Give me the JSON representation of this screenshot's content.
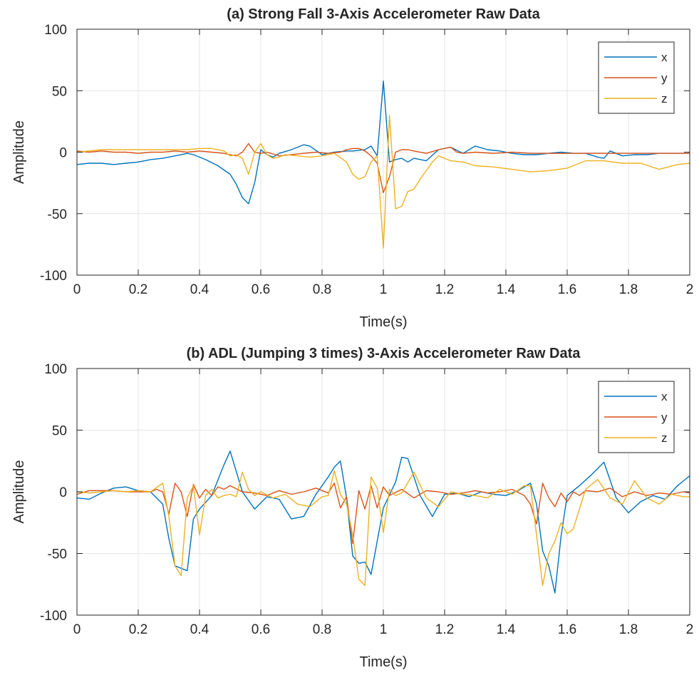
{
  "colors": {
    "x": "#0072BD",
    "y": "#D95319",
    "z": "#EDB120",
    "grid": "#e6e6e6",
    "axis": "#262626"
  },
  "chart_data": [
    {
      "type": "line",
      "title": "(a) Strong Fall 3-Axis Accelerometer Raw Data",
      "xlabel": "Time(s)",
      "ylabel": "Amplitude",
      "xlim": [
        0,
        2
      ],
      "ylim": [
        -100,
        100
      ],
      "xticks": [
        0,
        0.2,
        0.4,
        0.6,
        0.8,
        1,
        1.2,
        1.4,
        1.6,
        1.8,
        2
      ],
      "xtick_labels": [
        "0",
        "0.2",
        "0.4",
        "0.6",
        "0.8",
        "1",
        "1.2",
        "1.4",
        "1.6",
        "1.8",
        "2"
      ],
      "yticks": [
        -100,
        -50,
        0,
        50,
        100
      ],
      "ytick_labels": [
        "-100",
        "-50",
        "0",
        "50",
        "100"
      ],
      "grid": true,
      "legend": "top-right",
      "series": [
        {
          "name": "x",
          "color": "#0072BD",
          "x": [
            0,
            0.04,
            0.08,
            0.12,
            0.16,
            0.2,
            0.24,
            0.28,
            0.32,
            0.36,
            0.38,
            0.42,
            0.46,
            0.5,
            0.52,
            0.54,
            0.56,
            0.58,
            0.6,
            0.62,
            0.64,
            0.66,
            0.7,
            0.74,
            0.76,
            0.8,
            0.84,
            0.88,
            0.9,
            0.94,
            0.96,
            0.98,
            1.0,
            1.02,
            1.04,
            1.06,
            1.08,
            1.1,
            1.14,
            1.18,
            1.22,
            1.26,
            1.3,
            1.34,
            1.38,
            1.42,
            1.46,
            1.5,
            1.54,
            1.58,
            1.62,
            1.66,
            1.7,
            1.72,
            1.74,
            1.78,
            1.82,
            1.86,
            1.9,
            1.94,
            1.98,
            2.0
          ],
          "y": [
            -10,
            -9,
            -9,
            -10,
            -9,
            -8,
            -6,
            -5,
            -3,
            -1,
            -2,
            -6,
            -11,
            -18,
            -26,
            -37,
            -42,
            -25,
            2,
            -2,
            -4,
            -1,
            2,
            6,
            5,
            -2,
            0,
            1,
            1,
            2,
            5,
            -3,
            58,
            -8,
            -6,
            -5,
            -8,
            -5,
            -7,
            2,
            4,
            -1,
            5,
            2,
            1,
            -1,
            -2,
            -2,
            -1,
            0,
            -1,
            -1,
            -4,
            -5,
            1,
            -3,
            -2,
            -2,
            -1,
            -1,
            -1,
            -1
          ]
        },
        {
          "name": "y",
          "color": "#D95319",
          "x": [
            0,
            0.04,
            0.08,
            0.12,
            0.16,
            0.2,
            0.24,
            0.28,
            0.32,
            0.36,
            0.4,
            0.44,
            0.48,
            0.52,
            0.54,
            0.56,
            0.58,
            0.6,
            0.62,
            0.66,
            0.7,
            0.74,
            0.78,
            0.82,
            0.86,
            0.88,
            0.9,
            0.92,
            0.94,
            0.96,
            0.98,
            1.0,
            1.02,
            1.04,
            1.06,
            1.08,
            1.1,
            1.14,
            1.18,
            1.22,
            1.24,
            1.26,
            1.3,
            1.36,
            1.42,
            1.48,
            1.54,
            1.6,
            1.66,
            1.72,
            1.78,
            1.84,
            1.9,
            1.96,
            2.0
          ],
          "y": [
            1,
            0,
            1,
            0,
            0,
            -1,
            0,
            0,
            1,
            0,
            1,
            0,
            -1,
            -3,
            0,
            7,
            0,
            -1,
            0,
            -3,
            -2,
            -1,
            0,
            -1,
            0,
            2,
            3,
            3,
            1,
            -3,
            -9,
            -33,
            -20,
            0,
            2,
            2,
            1,
            -1,
            2,
            4,
            0,
            -1,
            0,
            -1,
            0,
            -1,
            -1,
            -1,
            -1,
            -1,
            -1,
            -1,
            -1,
            -1,
            -1
          ]
        },
        {
          "name": "z",
          "color": "#EDB120",
          "x": [
            0,
            0.04,
            0.08,
            0.12,
            0.16,
            0.2,
            0.24,
            0.28,
            0.32,
            0.36,
            0.4,
            0.44,
            0.48,
            0.5,
            0.52,
            0.54,
            0.56,
            0.58,
            0.6,
            0.62,
            0.64,
            0.66,
            0.68,
            0.72,
            0.76,
            0.8,
            0.84,
            0.88,
            0.9,
            0.92,
            0.94,
            0.96,
            0.98,
            1.0,
            1.02,
            1.04,
            1.06,
            1.08,
            1.1,
            1.12,
            1.14,
            1.16,
            1.18,
            1.22,
            1.26,
            1.3,
            1.36,
            1.42,
            1.48,
            1.54,
            1.6,
            1.66,
            1.72,
            1.78,
            1.84,
            1.9,
            1.96,
            2.0
          ],
          "y": [
            0,
            1,
            2,
            2,
            2,
            2,
            2,
            2,
            2,
            2,
            3,
            3,
            1,
            -3,
            -2,
            -5,
            -18,
            0,
            7,
            -2,
            -5,
            -4,
            -2,
            -3,
            -4,
            -3,
            -1,
            -8,
            -18,
            -22,
            -20,
            -8,
            -3,
            -78,
            30,
            -46,
            -44,
            -32,
            -30,
            -22,
            -15,
            -8,
            -3,
            -7,
            -8,
            -11,
            -12,
            -14,
            -16,
            -15,
            -13,
            -7,
            -7,
            -9,
            -9,
            -14,
            -10,
            -9
          ]
        }
      ]
    },
    {
      "type": "line",
      "title": "(b) ADL (Jumping 3 times) 3-Axis Accelerometer Raw Data",
      "xlabel": "Time(s)",
      "ylabel": "Amplitude",
      "xlim": [
        0,
        2
      ],
      "ylim": [
        -100,
        100
      ],
      "xticks": [
        0,
        0.2,
        0.4,
        0.6,
        0.8,
        1,
        1.2,
        1.4,
        1.6,
        1.8,
        2
      ],
      "xtick_labels": [
        "0",
        "0.2",
        "0.4",
        "0.6",
        "0.8",
        "1",
        "1.2",
        "1.4",
        "1.6",
        "1.8",
        "2"
      ],
      "yticks": [
        -100,
        -50,
        0,
        50,
        100
      ],
      "ytick_labels": [
        "-100",
        "-50",
        "0",
        "50",
        "100"
      ],
      "grid": true,
      "legend": "top-right",
      "series": [
        {
          "name": "x",
          "color": "#0072BD",
          "x": [
            0,
            0.04,
            0.08,
            0.12,
            0.16,
            0.2,
            0.24,
            0.28,
            0.3,
            0.32,
            0.34,
            0.36,
            0.38,
            0.4,
            0.44,
            0.48,
            0.5,
            0.54,
            0.58,
            0.62,
            0.66,
            0.7,
            0.74,
            0.78,
            0.82,
            0.84,
            0.86,
            0.88,
            0.9,
            0.92,
            0.94,
            0.96,
            1.0,
            1.04,
            1.06,
            1.08,
            1.12,
            1.16,
            1.2,
            1.24,
            1.28,
            1.32,
            1.36,
            1.4,
            1.44,
            1.48,
            1.5,
            1.52,
            1.54,
            1.56,
            1.58,
            1.6,
            1.64,
            1.68,
            1.72,
            1.76,
            1.8,
            1.84,
            1.88,
            1.92,
            1.96,
            2.0
          ],
          "y": [
            -5,
            -6,
            -1,
            3,
            4,
            1,
            0,
            -10,
            -38,
            -60,
            -62,
            -64,
            -22,
            -14,
            -3,
            22,
            33,
            0,
            -14,
            -4,
            -6,
            -22,
            -20,
            -2,
            12,
            20,
            25,
            -5,
            -52,
            -58,
            -57,
            -67,
            -13,
            8,
            28,
            27,
            -3,
            -20,
            -2,
            -1,
            -4,
            0,
            -2,
            -3,
            1,
            7,
            -10,
            -48,
            -60,
            -82,
            -36,
            -3,
            5,
            14,
            24,
            -5,
            -17,
            -8,
            -3,
            -6,
            5,
            13
          ]
        },
        {
          "name": "y",
          "color": "#D95319",
          "x": [
            0,
            0.04,
            0.08,
            0.12,
            0.16,
            0.2,
            0.24,
            0.26,
            0.28,
            0.3,
            0.32,
            0.34,
            0.36,
            0.38,
            0.4,
            0.42,
            0.44,
            0.46,
            0.48,
            0.5,
            0.54,
            0.58,
            0.62,
            0.66,
            0.7,
            0.74,
            0.78,
            0.82,
            0.84,
            0.86,
            0.88,
            0.9,
            0.92,
            0.94,
            0.96,
            0.98,
            1.0,
            1.02,
            1.06,
            1.1,
            1.14,
            1.18,
            1.22,
            1.26,
            1.3,
            1.34,
            1.38,
            1.42,
            1.46,
            1.48,
            1.5,
            1.52,
            1.54,
            1.56,
            1.58,
            1.6,
            1.62,
            1.64,
            1.66,
            1.7,
            1.74,
            1.78,
            1.82,
            1.86,
            1.9,
            1.94,
            1.98,
            2.0
          ],
          "y": [
            -2,
            1,
            1,
            1,
            0,
            0,
            0,
            2,
            0,
            -18,
            7,
            0,
            -20,
            6,
            -5,
            2,
            -3,
            4,
            2,
            5,
            0,
            -1,
            -3,
            1,
            -2,
            0,
            3,
            -1,
            7,
            -13,
            -4,
            -42,
            1,
            -14,
            5,
            -13,
            4,
            -3,
            2,
            -5,
            1,
            0,
            -2,
            -1,
            1,
            -1,
            0,
            2,
            -3,
            -10,
            -26,
            7,
            -5,
            -12,
            -1,
            -8,
            0,
            -3,
            1,
            0,
            3,
            -4,
            0,
            -3,
            -1,
            -2,
            0,
            -1
          ]
        },
        {
          "name": "z",
          "color": "#EDB120",
          "x": [
            0,
            0.04,
            0.08,
            0.12,
            0.16,
            0.2,
            0.24,
            0.28,
            0.3,
            0.32,
            0.34,
            0.36,
            0.38,
            0.4,
            0.42,
            0.44,
            0.46,
            0.48,
            0.5,
            0.52,
            0.54,
            0.56,
            0.58,
            0.6,
            0.64,
            0.68,
            0.72,
            0.76,
            0.8,
            0.82,
            0.84,
            0.86,
            0.88,
            0.9,
            0.92,
            0.94,
            0.96,
            0.98,
            1.0,
            1.02,
            1.04,
            1.06,
            1.1,
            1.14,
            1.18,
            1.22,
            1.26,
            1.3,
            1.34,
            1.38,
            1.42,
            1.46,
            1.48,
            1.5,
            1.52,
            1.54,
            1.56,
            1.58,
            1.6,
            1.62,
            1.66,
            1.7,
            1.74,
            1.78,
            1.82,
            1.86,
            1.9,
            1.94,
            1.98,
            2.0
          ],
          "y": [
            0,
            -1,
            0,
            1,
            0,
            1,
            0,
            7,
            -20,
            -60,
            -68,
            -5,
            5,
            -35,
            -3,
            2,
            -5,
            -3,
            -2,
            -4,
            16,
            2,
            -3,
            0,
            -5,
            -2,
            -10,
            -12,
            -4,
            -3,
            17,
            -2,
            -10,
            -35,
            -71,
            -76,
            12,
            3,
            -33,
            2,
            -3,
            -1,
            16,
            -5,
            -12,
            0,
            -2,
            -3,
            -5,
            2,
            -2,
            5,
            5,
            -35,
            -76,
            -50,
            -40,
            -25,
            -34,
            -30,
            2,
            10,
            -5,
            -10,
            9,
            -5,
            -10,
            -2,
            -4,
            -4
          ]
        }
      ]
    }
  ]
}
